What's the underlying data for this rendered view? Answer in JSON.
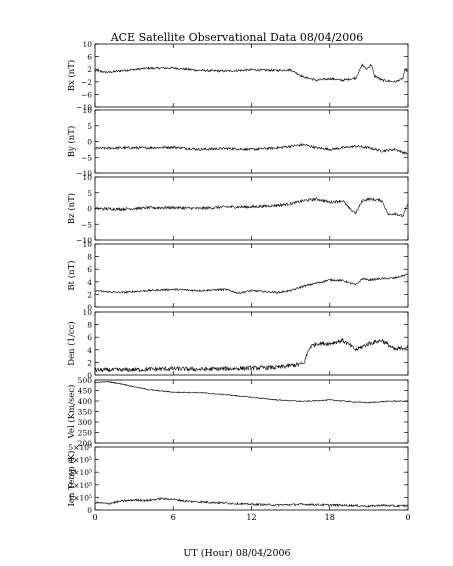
{
  "chart_data": {
    "type": "line",
    "title": "ACE Satellite Observational Data   08/04/2006",
    "xlabel": "UT (Hour)   08/04/2006",
    "x_ticks": [
      "0",
      "6",
      "12",
      "18",
      "0"
    ],
    "xlim": [
      0,
      24
    ],
    "grid": false,
    "panels": [
      {
        "ylabel": "Bx (nT)",
        "ylim": [
          -10,
          10
        ],
        "yticks": [
          "10",
          "6",
          "2",
          "−2",
          "−6",
          "−10"
        ],
        "ytick_values": [
          10,
          6,
          2,
          -2,
          -6,
          -10
        ],
        "noise": 0.35,
        "x": [
          0,
          1,
          2,
          4,
          6,
          8,
          10,
          12,
          14,
          15,
          16,
          17,
          18,
          19,
          20,
          20.5,
          20.8,
          21.2,
          21.4,
          22,
          23,
          23.6,
          23.8,
          24
        ],
        "y": [
          1.5,
          1.0,
          1.5,
          2.3,
          2.4,
          1.6,
          1.4,
          1.8,
          1.6,
          1.8,
          -0.5,
          -1.5,
          -1.0,
          -1.5,
          -0.8,
          3.5,
          2.0,
          3.5,
          0.0,
          -1.5,
          -2.0,
          -1.0,
          2.0,
          1.0
        ]
      },
      {
        "ylabel": "By (nT)",
        "ylim": [
          -10,
          10
        ],
        "yticks": [
          "10",
          "5",
          "0",
          "−5",
          "−10"
        ],
        "ytick_values": [
          10,
          5,
          0,
          -5,
          -10
        ],
        "noise": 0.4,
        "x": [
          0,
          2,
          4,
          6,
          8,
          10,
          12,
          14,
          15,
          16,
          17,
          18,
          19,
          20,
          21,
          22,
          23,
          24
        ],
        "y": [
          -2.2,
          -2.0,
          -2.0,
          -1.8,
          -2.5,
          -2.2,
          -2.5,
          -2.0,
          -1.5,
          -1.0,
          -2.0,
          -2.5,
          -2.0,
          -1.5,
          -2.0,
          -3.0,
          -2.5,
          -4.0
        ]
      },
      {
        "ylabel": "Bz (nT)",
        "ylim": [
          -10,
          10
        ],
        "yticks": [
          "10",
          "5",
          "0",
          "−5",
          "−10"
        ],
        "ytick_values": [
          10,
          5,
          0,
          -5,
          -10
        ],
        "noise": 0.45,
        "x": [
          0,
          2,
          4,
          6,
          8,
          10,
          12,
          14,
          15,
          16,
          17,
          18,
          19,
          19.5,
          20,
          20.5,
          21,
          22,
          22.5,
          23,
          23.6,
          24
        ],
        "y": [
          0.0,
          -0.2,
          0.2,
          0.3,
          0.0,
          0.5,
          0.5,
          1.0,
          1.5,
          2.5,
          3.0,
          2.0,
          2.5,
          0.0,
          -1.5,
          2.5,
          3.0,
          2.5,
          -2.0,
          -1.5,
          -2.5,
          1.5
        ]
      },
      {
        "ylabel": "Bt (nT)",
        "ylim": [
          0,
          10
        ],
        "yticks": [
          "10",
          "8",
          "6",
          "4",
          "2",
          "0"
        ],
        "ytick_values": [
          10,
          8,
          6,
          4,
          2,
          0
        ],
        "noise": 0.15,
        "x": [
          0,
          1,
          2,
          4,
          6,
          8,
          10,
          11,
          12,
          14,
          15,
          16,
          17,
          18,
          19,
          20,
          20.5,
          21,
          22,
          23,
          24
        ],
        "y": [
          2.6,
          2.4,
          2.3,
          2.6,
          2.8,
          2.6,
          2.8,
          2.2,
          2.6,
          2.3,
          2.6,
          3.3,
          3.8,
          4.3,
          4.2,
          3.5,
          4.5,
          4.3,
          4.5,
          4.6,
          5.2
        ]
      },
      {
        "ylabel": "Den (1/cc)",
        "ylim": [
          0,
          10
        ],
        "yticks": [
          "10",
          "8",
          "6",
          "4",
          "2",
          "0"
        ],
        "ytick_values": [
          10,
          8,
          6,
          4,
          2,
          0
        ],
        "noise": 0.35,
        "x": [
          0,
          2,
          4,
          6,
          8,
          10,
          12,
          14,
          15,
          16,
          16.3,
          16.5,
          17,
          18,
          19,
          20,
          21,
          22,
          23,
          24
        ],
        "y": [
          0.8,
          0.8,
          0.9,
          1.0,
          0.9,
          1.0,
          1.1,
          1.2,
          1.5,
          1.8,
          3.5,
          4.5,
          5.0,
          5.0,
          5.5,
          4.0,
          5.0,
          5.5,
          4.0,
          4.5
        ]
      },
      {
        "ylabel": "Vel (Km/sec)",
        "ylim": [
          200,
          500
        ],
        "yticks": [
          "500",
          "450",
          "400",
          "350",
          "300",
          "250",
          "200"
        ],
        "ytick_values": [
          500,
          450,
          400,
          350,
          300,
          250,
          200
        ],
        "noise": 2.5,
        "x": [
          0,
          1,
          2,
          3,
          4,
          5,
          6,
          8,
          10,
          12,
          14,
          16,
          18,
          19,
          20,
          21,
          22,
          23,
          24
        ],
        "y": [
          488,
          492,
          482,
          468,
          455,
          448,
          442,
          440,
          430,
          418,
          405,
          398,
          405,
          400,
          395,
          392,
          397,
          400,
          398
        ]
      },
      {
        "ylabel": "Ion Temp (K)",
        "ylim": [
          0,
          500000
        ],
        "yticks": [
          "5×10⁵",
          "4×10⁵",
          "3×10⁵",
          "2×10⁵",
          "1×10⁵",
          "0"
        ],
        "ytick_values": [
          500000,
          400000,
          300000,
          200000,
          100000,
          0
        ],
        "noise": 8000,
        "x": [
          0,
          1,
          2,
          3,
          4,
          5,
          6,
          7,
          8,
          10,
          12,
          14,
          16,
          18,
          20,
          21,
          22,
          23,
          24
        ],
        "y": [
          60000,
          50000,
          70000,
          80000,
          75000,
          90000,
          85000,
          70000,
          65000,
          55000,
          45000,
          40000,
          45000,
          40000,
          35000,
          30000,
          38000,
          32000,
          35000
        ]
      }
    ]
  }
}
